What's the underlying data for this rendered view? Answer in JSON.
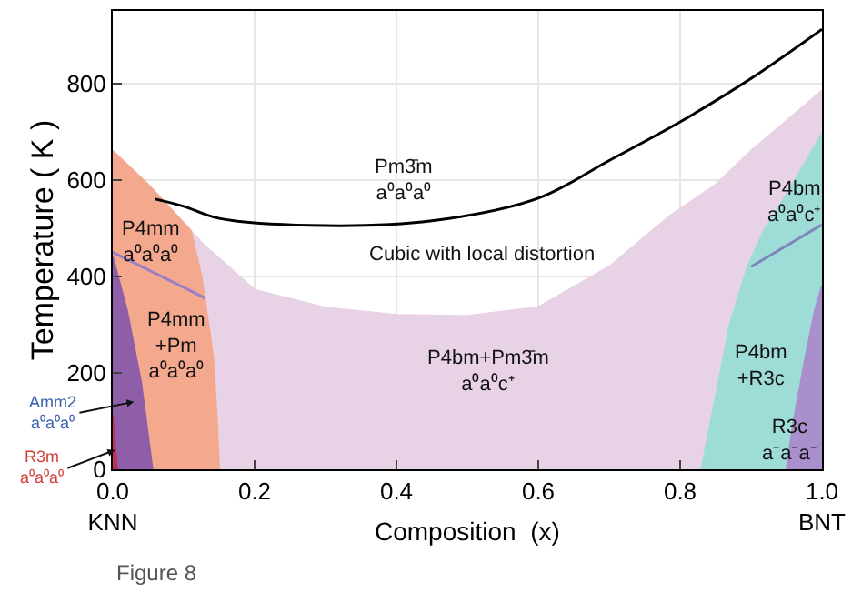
{
  "chart_data": {
    "type": "area",
    "xlabel": "Composition  (x)",
    "ylabel": "Temperature ( K )",
    "xlim": [
      0,
      1
    ],
    "ylim": [
      0,
      950
    ],
    "xticks": [
      {
        "value": 0,
        "label": "0.0\nKNN"
      },
      {
        "value": 0.2,
        "label": "0.2"
      },
      {
        "value": 0.4,
        "label": "0.4"
      },
      {
        "value": 0.6,
        "label": "0.6"
      },
      {
        "value": 0.8,
        "label": "0.8"
      },
      {
        "value": 1,
        "label": "1.0\nBNT"
      }
    ],
    "yticks": [
      0,
      200,
      400,
      600,
      800
    ],
    "grid": true,
    "series": [
      {
        "color": "#e8d2e6",
        "x": [
          0,
          0.05,
          0.1,
          0.13,
          0.2,
          0.3,
          0.4,
          0.5,
          0.6,
          0.7,
          0.785,
          0.85,
          0.9,
          1.0
        ],
        "values": [
          660,
          590,
          510,
          463,
          372,
          335,
          320,
          318,
          336,
          420,
          525,
          590,
          660,
          785
        ]
      },
      {
        "color": "#f4a88e",
        "x": [
          0,
          0.05,
          0.11,
          0.125,
          0.135,
          0.142,
          0.147,
          0.15
        ],
        "values": [
          660,
          590,
          495,
          400,
          300,
          226,
          100,
          0
        ]
      },
      {
        "type": "line",
        "color": "#9b80c4",
        "x": [
          0,
          0.13
        ],
        "values": [
          450,
          355
        ]
      },
      {
        "color": "#8e5ea8",
        "x": [
          0,
          0.02,
          0.04,
          0.056
        ],
        "values": [
          440,
          330,
          180,
          0
        ]
      },
      {
        "color": "#c0305a",
        "x": [
          0,
          0.006
        ],
        "values": [
          110,
          0
        ]
      },
      {
        "color": "#9edcd8",
        "x": [
          0.83,
          0.85,
          0.87,
          0.895,
          0.92,
          0.944,
          0.97,
          1.0
        ],
        "values": [
          0,
          150,
          300,
          420,
          500,
          555,
          620,
          695
        ]
      },
      {
        "type": "line",
        "color": "#7f86b8",
        "x": [
          0.9,
          1.0
        ],
        "values": [
          420,
          507
        ]
      },
      {
        "color": "#a98fcc",
        "x": [
          0.95,
          0.96,
          0.975,
          0.99,
          1.0
        ],
        "values": [
          0,
          100,
          220,
          330,
          380
        ]
      },
      {
        "type": "line",
        "color": "#000000",
        "x": [
          0.06,
          0.1,
          0.15,
          0.3,
          0.45,
          0.6,
          0.7,
          0.8,
          0.9,
          1.0
        ],
        "values": [
          560,
          545,
          520,
          505,
          515,
          562,
          640,
          720,
          810,
          912
        ]
      }
    ],
    "annotations": [
      "Pm3̄m\na⁰a⁰a⁰",
      "Cubic with local distortion",
      "P4mm\na⁰a⁰a⁰",
      "P4mm\n+Pm\na⁰a⁰a⁰",
      "P4bm+Pm3̄m\na⁰a⁰c⁺",
      "P4bm\na⁰a⁰c⁺",
      "P4bm\n+R3c",
      "R3c\na⁻a⁻a⁻",
      {
        "text": "Amm2\na⁰a⁰a⁰",
        "x": 0.03,
        "y": 140
      },
      {
        "text": "R3m\na⁰a⁰a⁰",
        "x": 0.003,
        "y": 40
      },
      "Figure 8"
    ]
  }
}
